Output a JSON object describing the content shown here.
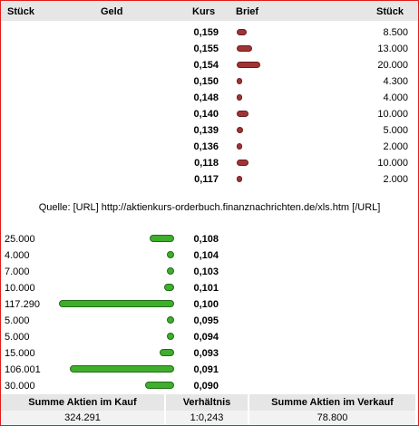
{
  "header": {
    "col1": "Stück",
    "col2": "Geld",
    "col3": "Kurs",
    "col4": "Brief",
    "col5": "Stück"
  },
  "asks": [
    {
      "kurs": "0,159",
      "qty": "8.500",
      "amount": 8500
    },
    {
      "kurs": "0,155",
      "qty": "13.000",
      "amount": 13000
    },
    {
      "kurs": "0,154",
      "qty": "20.000",
      "amount": 20000
    },
    {
      "kurs": "0,150",
      "qty": "4.300",
      "amount": 4300
    },
    {
      "kurs": "0,148",
      "qty": "4.000",
      "amount": 4000
    },
    {
      "kurs": "0,140",
      "qty": "10.000",
      "amount": 10000
    },
    {
      "kurs": "0,139",
      "qty": "5.000",
      "amount": 5000
    },
    {
      "kurs": "0,136",
      "qty": "2.000",
      "amount": 2000
    },
    {
      "kurs": "0,118",
      "qty": "10.000",
      "amount": 10000
    },
    {
      "kurs": "0,117",
      "qty": "2.000",
      "amount": 2000
    }
  ],
  "source": "Quelle: [URL] http://aktienkurs-orderbuch.finanznachrichten.de/xls.htm [/URL]",
  "bids": [
    {
      "kurs": "0,108",
      "qty": "25.000",
      "amount": 25000
    },
    {
      "kurs": "0,104",
      "qty": "4.000",
      "amount": 4000
    },
    {
      "kurs": "0,103",
      "qty": "7.000",
      "amount": 7000
    },
    {
      "kurs": "0,101",
      "qty": "10.000",
      "amount": 10000
    },
    {
      "kurs": "0,100",
      "qty": "117.290",
      "amount": 117290
    },
    {
      "kurs": "0,095",
      "qty": "5.000",
      "amount": 5000
    },
    {
      "kurs": "0,094",
      "qty": "5.000",
      "amount": 5000
    },
    {
      "kurs": "0,093",
      "qty": "15.000",
      "amount": 15000
    },
    {
      "kurs": "0,091",
      "qty": "106.001",
      "amount": 106001
    },
    {
      "kurs": "0,090",
      "qty": "30.000",
      "amount": 30000
    }
  ],
  "footer": {
    "label_buy": "Summe Aktien im Kauf",
    "label_ratio": "Verhältnis",
    "label_sell": "Summe Aktien im Verkauf",
    "value_buy": "324.291",
    "value_ratio": "1:0,243",
    "value_sell": "78.800"
  },
  "colors": {
    "ask_bar": "#a03434",
    "bid_bar": "#3fae2c",
    "border": "#e41b1b"
  }
}
